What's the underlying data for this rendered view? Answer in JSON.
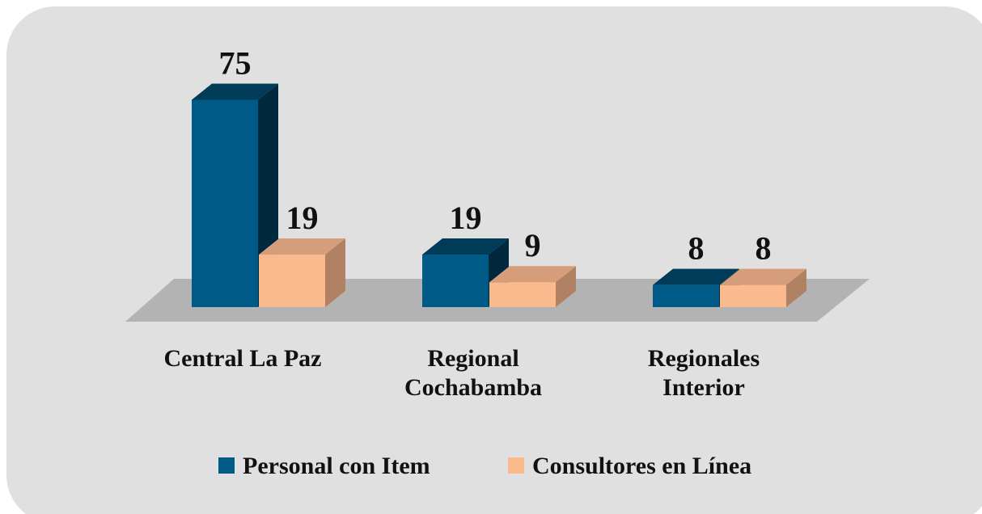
{
  "chart_data": {
    "type": "bar3d",
    "categories": [
      "Central La Paz",
      "Regional Cochabamba",
      "Regionales Interior"
    ],
    "series": [
      {
        "name": "Personal con Item",
        "color": "#005a87",
        "values": [
          75,
          19,
          8
        ]
      },
      {
        "name": "Consultores en Línea",
        "color": "#fbb98e",
        "values": [
          19,
          9,
          8
        ]
      }
    ]
  }
}
